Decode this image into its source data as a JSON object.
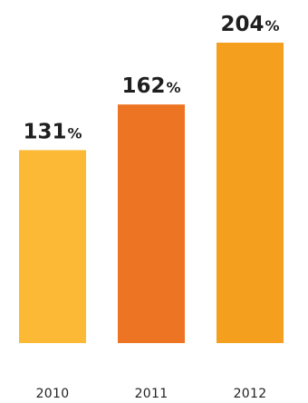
{
  "chart_data": {
    "type": "bar",
    "title": "",
    "xlabel": "",
    "ylabel": "",
    "categories": [
      "2010",
      "2011",
      "2012"
    ],
    "values": [
      131,
      162,
      204
    ],
    "value_labels": [
      "131",
      "162",
      "204"
    ],
    "unit": "%",
    "colors": [
      "#FBB936",
      "#EC7422",
      "#F59F1E"
    ],
    "ylim": [
      0,
      204
    ],
    "grid": false,
    "legend": "none"
  }
}
